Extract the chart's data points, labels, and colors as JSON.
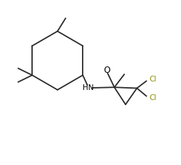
{
  "background_color": "#ffffff",
  "line_color": "#2a2a2a",
  "cl_color": "#8B8B00",
  "o_color": "#000000",
  "hn_color": "#000000",
  "figure_width": 2.55,
  "figure_height": 2.31,
  "dpi": 100,
  "xlim": [
    0,
    10
  ],
  "ylim": [
    0,
    9.07
  ]
}
